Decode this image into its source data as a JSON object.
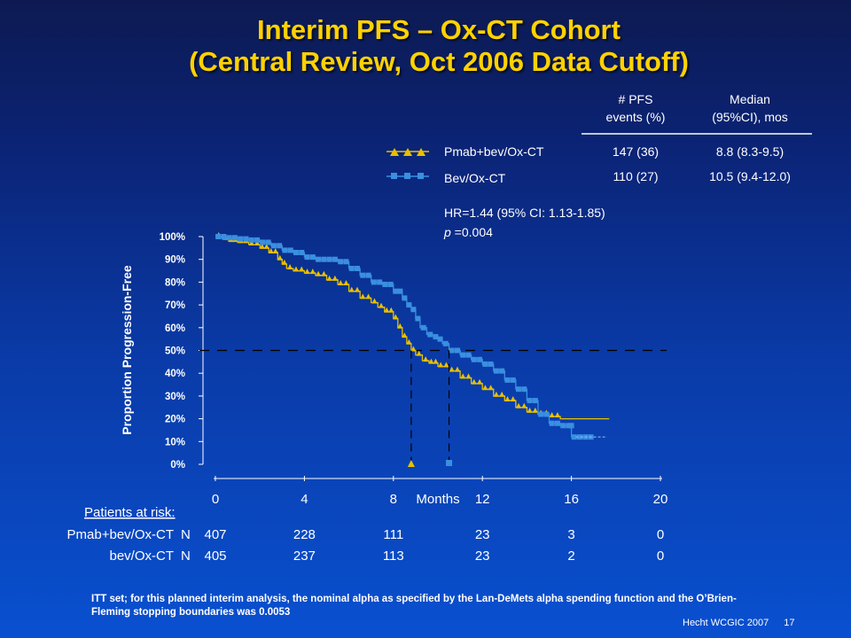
{
  "slide": {
    "title_line1": "Interim PFS – Ox-CT Cohort",
    "title_line2": "(Central Review, Oct 2006 Data Cutoff)",
    "footnote": "ITT set; for this planned interim analysis, the nominal alpha as specified by the Lan-DeMets alpha spending function and the O’Brien-Fleming  stopping boundaries was 0.0053",
    "credit": "Hecht WCGIC  2007",
    "page_number": "17"
  },
  "summary_table": {
    "col_headers": [
      [
        "# PFS",
        "events (%)"
      ],
      [
        "Median",
        "(95%CI), mos"
      ]
    ],
    "rows": [
      {
        "label": "Pmab+bev/Ox-CT",
        "events": "147 (36)",
        "median": "8.8 (8.3-9.5)"
      },
      {
        "label": "Bev/Ox-CT",
        "events": "110 (27)",
        "median": "10.5 (9.4-12.0)"
      }
    ],
    "hr_text": "HR=1.44 (95% CI: 1.13-1.85)",
    "p_label": "p",
    "p_text": " =0.004"
  },
  "chart_data": {
    "type": "line",
    "xlabel": "Months",
    "ylabel": "Proportion Progression-Free",
    "xlim": [
      0,
      20
    ],
    "ylim": [
      0,
      1
    ],
    "x_ticks": [
      0,
      4,
      8,
      12,
      16,
      20
    ],
    "y_ticks": [
      "0%",
      "10%",
      "20%",
      "30%",
      "40%",
      "50%",
      "60%",
      "70%",
      "80%",
      "90%",
      "100%"
    ],
    "reference_line_y": 0.5,
    "series": [
      {
        "name": "Pmab+bev/Ox-CT",
        "color": "#e8c000",
        "marker": "triangle",
        "median": 8.8,
        "points": [
          [
            0,
            1.0
          ],
          [
            0.3,
            0.99
          ],
          [
            0.6,
            0.98
          ],
          [
            1,
            0.975
          ],
          [
            1.5,
            0.965
          ],
          [
            2,
            0.95
          ],
          [
            2.4,
            0.93
          ],
          [
            2.8,
            0.9
          ],
          [
            3,
            0.88
          ],
          [
            3.2,
            0.86
          ],
          [
            3.5,
            0.85
          ],
          [
            4,
            0.84
          ],
          [
            4.5,
            0.83
          ],
          [
            5,
            0.81
          ],
          [
            5.5,
            0.79
          ],
          [
            6,
            0.76
          ],
          [
            6.5,
            0.73
          ],
          [
            7,
            0.71
          ],
          [
            7.3,
            0.69
          ],
          [
            7.6,
            0.67
          ],
          [
            8,
            0.64
          ],
          [
            8.2,
            0.6
          ],
          [
            8.4,
            0.56
          ],
          [
            8.6,
            0.53
          ],
          [
            8.8,
            0.5
          ],
          [
            9,
            0.48
          ],
          [
            9.3,
            0.455
          ],
          [
            9.6,
            0.445
          ],
          [
            10,
            0.43
          ],
          [
            10.5,
            0.41
          ],
          [
            11,
            0.38
          ],
          [
            11.5,
            0.355
          ],
          [
            12,
            0.33
          ],
          [
            12.5,
            0.3
          ],
          [
            13,
            0.28
          ],
          [
            13.5,
            0.25
          ],
          [
            14,
            0.23
          ],
          [
            14.5,
            0.22
          ],
          [
            15,
            0.21
          ],
          [
            15.5,
            0.2
          ],
          [
            16,
            0.2
          ],
          [
            16.5,
            0.2
          ],
          [
            17,
            0.2
          ],
          [
            17.7,
            0.2
          ]
        ]
      },
      {
        "name": "Bev/Ox-CT",
        "color": "#3a8fe0",
        "marker": "square",
        "median": 10.5,
        "points": [
          [
            0,
            1.0
          ],
          [
            0.5,
            0.995
          ],
          [
            1,
            0.99
          ],
          [
            1.5,
            0.985
          ],
          [
            2,
            0.975
          ],
          [
            2.5,
            0.96
          ],
          [
            3,
            0.94
          ],
          [
            3.5,
            0.93
          ],
          [
            4,
            0.91
          ],
          [
            4.5,
            0.9
          ],
          [
            5,
            0.9
          ],
          [
            5.5,
            0.89
          ],
          [
            6,
            0.86
          ],
          [
            6.5,
            0.83
          ],
          [
            7,
            0.8
          ],
          [
            7.5,
            0.79
          ],
          [
            8,
            0.76
          ],
          [
            8.4,
            0.73
          ],
          [
            8.6,
            0.7
          ],
          [
            8.8,
            0.68
          ],
          [
            9,
            0.64
          ],
          [
            9.2,
            0.6
          ],
          [
            9.5,
            0.57
          ],
          [
            9.8,
            0.56
          ],
          [
            10,
            0.55
          ],
          [
            10.2,
            0.53
          ],
          [
            10.5,
            0.5
          ],
          [
            11,
            0.48
          ],
          [
            11.5,
            0.46
          ],
          [
            12,
            0.44
          ],
          [
            12.5,
            0.41
          ],
          [
            13,
            0.37
          ],
          [
            13.5,
            0.33
          ],
          [
            14,
            0.28
          ],
          [
            14.5,
            0.22
          ],
          [
            15,
            0.18
          ],
          [
            15.5,
            0.17
          ],
          [
            16,
            0.17
          ],
          [
            16,
            0.12
          ],
          [
            17,
            0.12
          ]
        ]
      }
    ],
    "risk_table": {
      "heading": "Patients at risk:",
      "n_label": "N",
      "times": [
        0,
        4,
        8,
        12,
        16,
        20
      ],
      "rows": [
        {
          "label": "Pmab+bev/Ox-CT",
          "counts": [
            "407",
            "228",
            "111",
            "23",
            "3",
            "0"
          ]
        },
        {
          "label": "bev/Ox-CT",
          "counts": [
            "405",
            "237",
            "113",
            "23",
            "2",
            "0"
          ]
        }
      ]
    }
  }
}
